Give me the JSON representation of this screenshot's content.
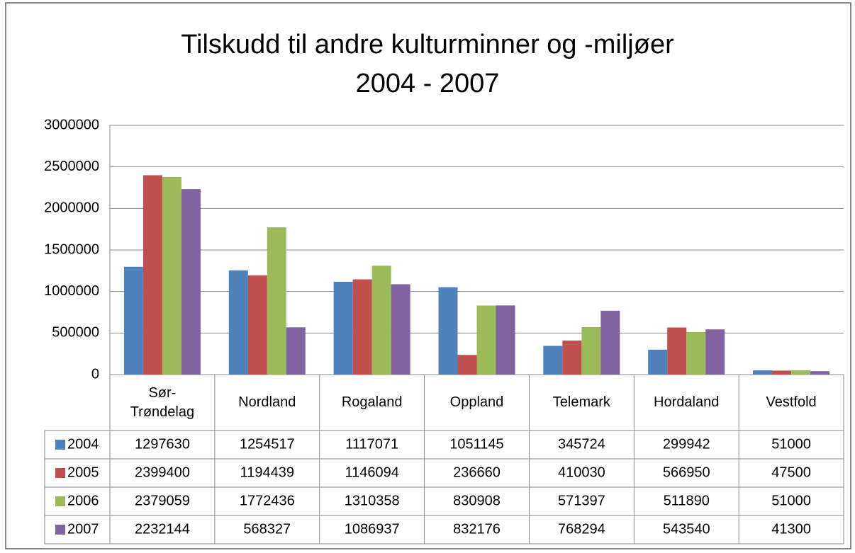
{
  "chart_data": {
    "type": "bar",
    "title": [
      "Tilskudd til andre kulturminner og -miljøer",
      "2004 - 2007"
    ],
    "categories": [
      "Sør-Trøndelag",
      "Nordland",
      "Rogaland",
      "Oppland",
      "Telemark",
      "Hordaland",
      "Vestfold"
    ],
    "series": [
      {
        "name": "2004",
        "color": "#4f81bd",
        "values": [
          1297630,
          1254517,
          1117071,
          1051145,
          345724,
          299942,
          51000
        ]
      },
      {
        "name": "2005",
        "color": "#c0504d",
        "values": [
          2399400,
          1194439,
          1146094,
          236660,
          410030,
          566950,
          47500
        ]
      },
      {
        "name": "2006",
        "color": "#9bbb59",
        "values": [
          2379059,
          1772436,
          1310358,
          830908,
          571397,
          511890,
          51000
        ]
      },
      {
        "name": "2007",
        "color": "#8064a2",
        "values": [
          2232144,
          568327,
          1086937,
          832176,
          768294,
          543540,
          41300
        ]
      }
    ],
    "ylim": [
      0,
      3000000
    ],
    "yticks": [
      0,
      500000,
      1000000,
      1500000,
      2000000,
      2500000,
      3000000
    ],
    "grid": true
  }
}
